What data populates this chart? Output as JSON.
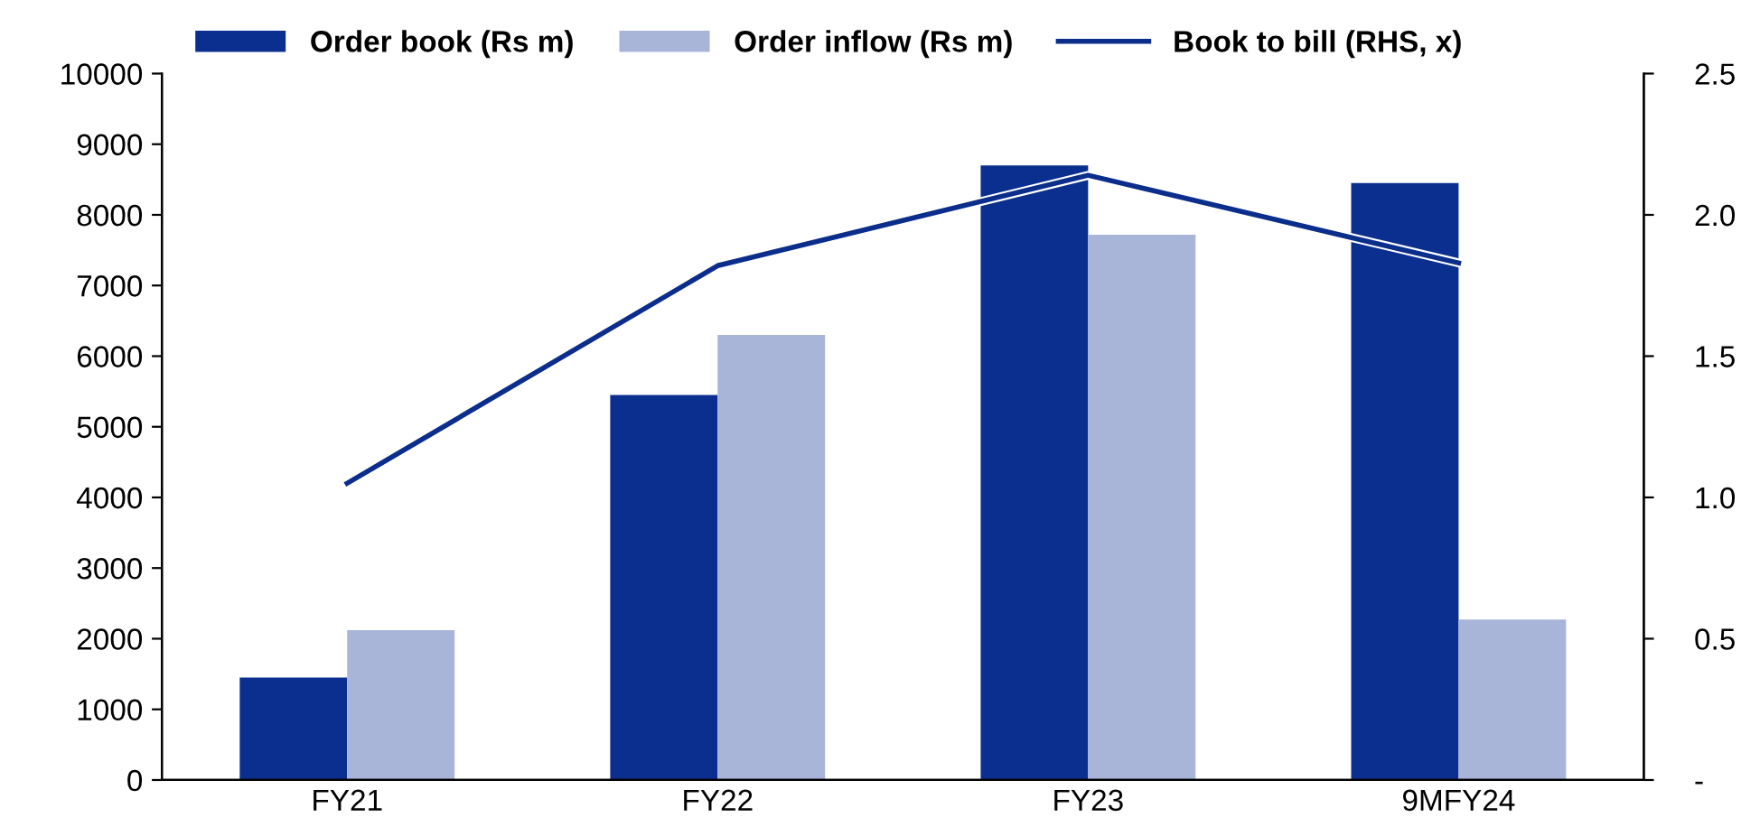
{
  "chart_data": {
    "type": "bar",
    "categories": [
      "FY21",
      "FY22",
      "FY23",
      "9MFY24"
    ],
    "series": [
      {
        "name": "Order book (Rs m)",
        "color": "#0b2f8e",
        "values": [
          1450,
          5450,
          8700,
          8450
        ]
      },
      {
        "name": "Order inflow (Rs m)",
        "color": "#a9b4d9",
        "values": [
          2120,
          6300,
          7720,
          2270
        ]
      },
      {
        "name": "Book to bill (RHS, x)",
        "type": "line",
        "axis": "y2",
        "color": "#0b2d8b",
        "values": [
          1.05,
          1.82,
          2.14,
          1.83
        ]
      }
    ],
    "ylim": [
      0,
      10000
    ],
    "yticks": [
      0,
      1000,
      2000,
      3000,
      4000,
      5000,
      6000,
      7000,
      8000,
      9000,
      10000
    ],
    "y2lim": [
      0,
      2.5
    ],
    "y2ticks": [
      {
        "value": 0,
        "label": "-"
      },
      {
        "value": 0.5,
        "label": "0.5"
      },
      {
        "value": 1.0,
        "label": "1.0"
      },
      {
        "value": 1.5,
        "label": "1.5"
      },
      {
        "value": 2.0,
        "label": "2.0"
      },
      {
        "value": 2.5,
        "label": "2.5"
      }
    ],
    "grid": false,
    "legend": "top",
    "marker": "none",
    "line_style": "solid"
  }
}
